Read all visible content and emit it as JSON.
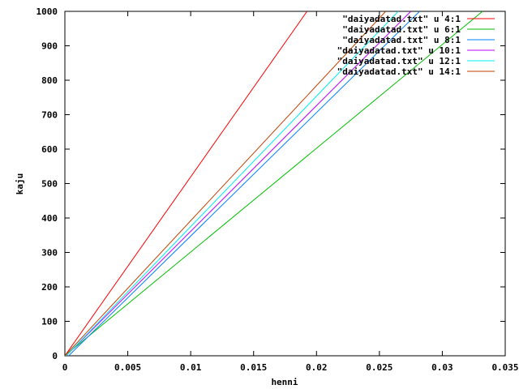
{
  "chart_data": {
    "type": "line",
    "xlabel": "henni",
    "ylabel": "kaju",
    "xlim": [
      0,
      0.035
    ],
    "ylim": [
      0,
      1000
    ],
    "x_ticks": [
      0,
      0.005,
      0.01,
      0.015,
      0.02,
      0.025,
      0.03,
      0.035
    ],
    "x_tick_labels": [
      "0",
      "0.005",
      "0.01",
      "0.015",
      "0.02",
      "0.025",
      "0.03",
      "0.035"
    ],
    "y_ticks": [
      0,
      100,
      200,
      300,
      400,
      500,
      600,
      700,
      800,
      900,
      1000
    ],
    "y_tick_labels": [
      "0",
      "100",
      "200",
      "300",
      "400",
      "500",
      "600",
      "700",
      "800",
      "900",
      "1000"
    ],
    "grid": false,
    "legend_position": "top-right",
    "series": [
      {
        "name": "\"daiyadatad.txt\" u 4:1",
        "color": "#ff0000",
        "x": [
          0,
          0.01925
        ],
        "y": [
          0,
          1000
        ]
      },
      {
        "name": "\"daiyadatad.txt\" u 6:1",
        "color": "#00c000",
        "x": [
          0,
          0.0332
        ],
        "y": [
          0,
          1000
        ]
      },
      {
        "name": "\"daiyadatad.txt\" u 8:1",
        "color": "#0080ff",
        "x": [
          0.0003,
          0.0282
        ],
        "y": [
          0,
          1000
        ]
      },
      {
        "name": "\"daiyadatad.txt\" u 10:1",
        "color": "#c000ff",
        "x": [
          0.0001,
          0.0275
        ],
        "y": [
          0,
          1000
        ]
      },
      {
        "name": "\"daiyadatad.txt\" u 12:1",
        "color": "#00eeee",
        "x": [
          0.0001,
          0.0265
        ],
        "y": [
          0,
          1000
        ]
      },
      {
        "name": "\"daiyadatad.txt\" u 14:1",
        "color": "#c04000",
        "x": [
          0,
          0.0255
        ],
        "y": [
          0,
          1000
        ]
      }
    ]
  }
}
